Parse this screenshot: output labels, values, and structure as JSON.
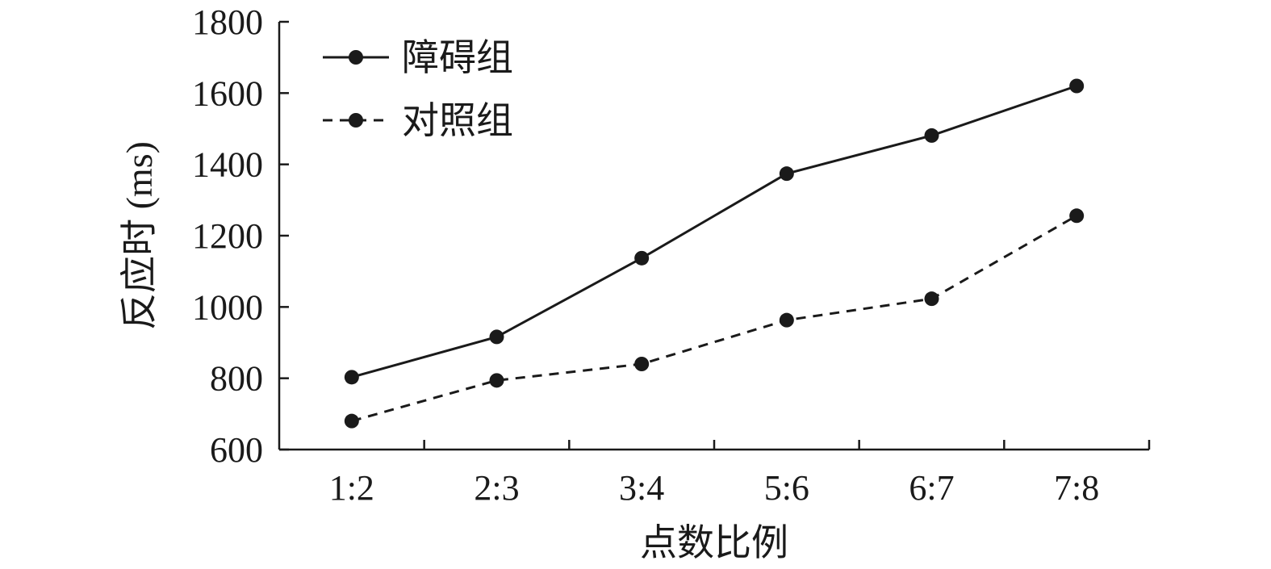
{
  "chart_data": {
    "type": "line",
    "categories": [
      "1:2",
      "2:3",
      "3:4",
      "5:6",
      "6:7",
      "7:8"
    ],
    "series": [
      {
        "name": "障碍组",
        "values": [
          803,
          916,
          1137,
          1374,
          1481,
          1620
        ],
        "line_style": "solid"
      },
      {
        "name": "对照组",
        "values": [
          680,
          794,
          840,
          963,
          1023,
          1256
        ],
        "line_style": "dashed"
      }
    ],
    "xlabel": "点数比例",
    "ylabel": "反应时 (ms)",
    "ylim": [
      600,
      1800
    ],
    "yticks": [
      600,
      800,
      1000,
      1200,
      1400,
      1600,
      1800
    ],
    "grid": false,
    "legend_position": "top-left",
    "colors": {
      "line": "#1a1a1a",
      "marker": "#1a1a1a"
    }
  }
}
